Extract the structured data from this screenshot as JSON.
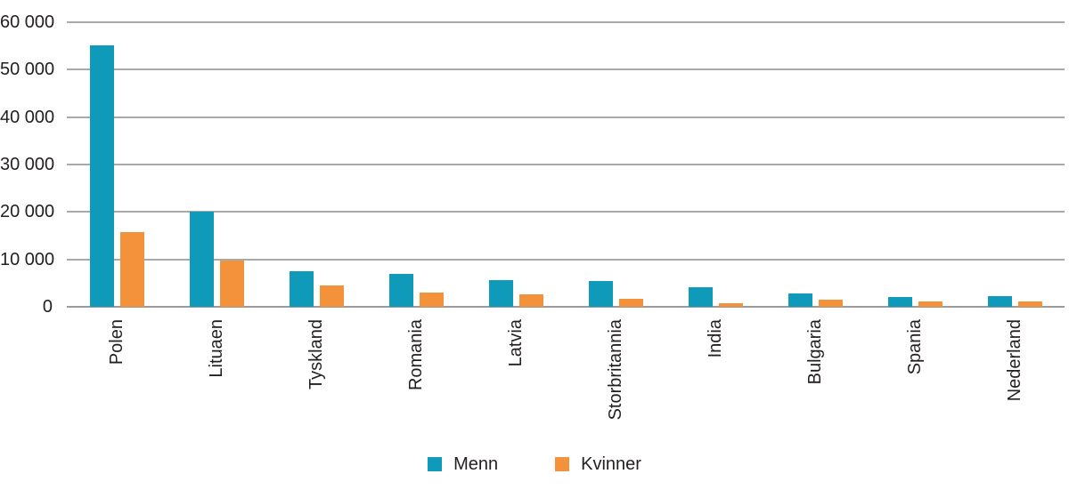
{
  "chart_data": {
    "type": "bar",
    "title": "",
    "xlabel": "",
    "ylabel": "",
    "categories": [
      "Polen",
      "Lituaen",
      "Tyskland",
      "Romania",
      "Latvia",
      "Storbritannia",
      "India",
      "Bulgaria",
      "Spania",
      "Nederland"
    ],
    "series": [
      {
        "name": "Menn",
        "color": "#0e9ab8",
        "values": [
          55100,
          20100,
          7500,
          6900,
          5600,
          5500,
          4200,
          2900,
          2100,
          2200
        ]
      },
      {
        "name": "Kvinner",
        "color": "#f3923a",
        "values": [
          15700,
          9800,
          4500,
          3000,
          2700,
          1600,
          800,
          1500,
          1200,
          1100
        ]
      }
    ],
    "ylim": [
      0,
      60000
    ],
    "ytick_step": 10000,
    "ytick_labels": [
      "0",
      "10 000",
      "20 000",
      "30 000",
      "40 000",
      "50 000",
      "60 000"
    ],
    "grid": true,
    "legend_position": "bottom"
  },
  "colors": {
    "gridline": "#a9a9a9",
    "baseline": "#9b9b9b",
    "text": "#231f20",
    "background": "#ffffff"
  }
}
